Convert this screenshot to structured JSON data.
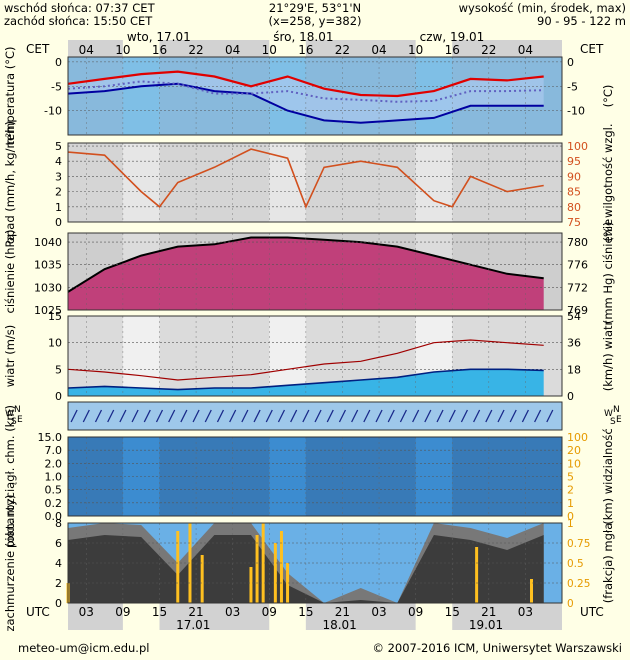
{
  "header": {
    "sunrise": "wschód słońca: 07:37 CET",
    "sunset": "zachód słońca: 15:50 CET",
    "coords": "21°29'E, 53°1'N",
    "grid": "(x=258, y=382)",
    "altitude_label": "wysokość (min, środek, max)",
    "altitude_values": "90 - 95 - 122 m"
  },
  "tz_top": "CET",
  "tz_bottom": "UTC",
  "days_top": [
    "wto, 17.01",
    "śro, 18.01",
    "czw, 19.01"
  ],
  "days_bottom": [
    "17.01",
    "18.01",
    "19.01"
  ],
  "hours_top": [
    "04",
    "10",
    "16",
    "22",
    "04",
    "10",
    "16",
    "22",
    "04",
    "10",
    "16",
    "22",
    "04"
  ],
  "hours_bottom": [
    "03",
    "09",
    "15",
    "21",
    "03",
    "09",
    "15",
    "21",
    "03",
    "09",
    "15",
    "21",
    "03"
  ],
  "footer": {
    "email": "meteo-um@icm.edu.pl",
    "copyright": "© 2007-2016 ICM, Uniwersytet Warszawski"
  },
  "colors": {
    "page_bg": "#ffffe6",
    "sky_blue": "#7fbfe6",
    "night_gray": "#d2d2d2",
    "temp_max": "#e00000",
    "temp_mid": "#0000a0",
    "humidity": "#d2501e",
    "pressure_line": "#000000",
    "wind_speed": "#a00000",
    "cloud_dark": "#3c3c3c",
    "visibility": "#e69a00",
    "fog": "#ffc020"
  },
  "chart_data": [
    {
      "type": "line",
      "panel": "temperature",
      "ylabel": "temperatura (°C)",
      "ylabel_right": "(°C)",
      "yticks": [
        0,
        -5,
        -10
      ],
      "ylim": [
        -15,
        1
      ],
      "x_hours": [
        0,
        6,
        12,
        18,
        24,
        30,
        36,
        42,
        48,
        54,
        60,
        66,
        72,
        78
      ],
      "series": [
        {
          "key": "max",
          "values": [
            -4.5,
            -3.5,
            -2.5,
            -2.0,
            -3.0,
            -5.0,
            -3.0,
            -5.5,
            -6.8,
            -7.0,
            -6.0,
            -3.5,
            -3.8,
            -3.0
          ]
        },
        {
          "key": "mid",
          "values": [
            -5.5,
            -5.0,
            -4.0,
            -4.5,
            -6.5,
            -6.5,
            -6.0,
            -7.5,
            -7.8,
            -8.2,
            -8.0,
            -6.0,
            -6.0,
            -5.8
          ]
        },
        {
          "key": "min",
          "values": [
            -6.5,
            -6.0,
            -5.0,
            -4.5,
            -6.0,
            -6.5,
            -10.0,
            -12.0,
            -12.5,
            -12.0,
            -11.5,
            -9.0,
            -9.0,
            -9.0
          ]
        }
      ]
    },
    {
      "type": "bar+line",
      "panel": "precipitation",
      "ylabel": "opad (mm/h, kg/m²h)",
      "ylabel_right": "(%) wilgotność wzgl.",
      "yticks": [
        0,
        1,
        2,
        3,
        4,
        5
      ],
      "ylim": [
        0,
        5.2
      ],
      "yticks_right": [
        75,
        80,
        85,
        90,
        95,
        100
      ],
      "ylim_right": [
        75,
        101
      ],
      "humidity_x": [
        0,
        6,
        12,
        15,
        18,
        24,
        30,
        36,
        39,
        42,
        48,
        54,
        60,
        63,
        66,
        72,
        78
      ],
      "humidity_values": [
        98,
        97,
        85,
        80,
        88,
        93,
        99,
        96,
        80,
        93,
        95,
        93,
        82,
        80,
        90,
        85,
        87
      ]
    },
    {
      "type": "area",
      "panel": "pressure",
      "ylabel": "ciśnienie (hPa)",
      "ylabel_right": "(mm Hg) ciśnienie",
      "yticks": [
        1025,
        1030,
        1035,
        1040
      ],
      "ylim": [
        1025,
        1042
      ],
      "yticks_right": [
        "780",
        "776",
        "772",
        "769"
      ],
      "x_hours": [
        0,
        6,
        12,
        18,
        24,
        30,
        36,
        42,
        48,
        54,
        60,
        66,
        72,
        78
      ],
      "values": [
        1029,
        1034,
        1037,
        1039,
        1039.5,
        1041,
        1041,
        1040.5,
        1040,
        1039,
        1037,
        1035,
        1033,
        1032
      ]
    },
    {
      "type": "line",
      "panel": "wind",
      "ylabel": "wiatr (m/s)",
      "ylabel_right": "(km/h) wiatr",
      "yticks": [
        0,
        5,
        10,
        15
      ],
      "ylim": [
        0,
        15
      ],
      "yticks_right": [
        "0",
        "18",
        "36",
        "54"
      ],
      "x_hours": [
        0,
        6,
        12,
        18,
        24,
        30,
        36,
        42,
        48,
        54,
        60,
        66,
        72,
        78
      ],
      "series": [
        {
          "key": "gust",
          "values": [
            5.0,
            4.5,
            3.8,
            3.0,
            3.5,
            4.0,
            5.0,
            6.0,
            6.5,
            8.0,
            10.0,
            10.5,
            10.0,
            9.5
          ]
        },
        {
          "key": "speed",
          "values": [
            1.5,
            1.8,
            1.5,
            1.2,
            1.5,
            1.5,
            2.0,
            2.5,
            3.0,
            3.5,
            4.5,
            5.0,
            5.0,
            4.8
          ]
        }
      ]
    },
    {
      "type": "barbs",
      "panel": "wind_direction",
      "label_left": "W S N E",
      "label_right": "W S N E"
    },
    {
      "type": "scatter+line",
      "panel": "visibility",
      "ylabel": "pion. rozciągł. chm. (km)",
      "ylabel_right": "(km) widzialność",
      "yticks": [
        "0.0",
        "0.2",
        "0.5",
        "1.0",
        "2.0",
        "7.0",
        "15.0"
      ],
      "yticks_right": [
        "0",
        "1",
        "2",
        "5",
        "10",
        "20",
        "100"
      ]
    },
    {
      "type": "area",
      "panel": "cloudiness",
      "ylabel": "zachmurzenie (oktanty)",
      "ylabel_right": "(frakcja) mgła",
      "yticks": [
        0,
        2,
        4,
        6,
        8
      ],
      "ylim": [
        0,
        8
      ],
      "yticks_right": [
        "0",
        "0.25",
        "0.5",
        "0.75",
        "1"
      ],
      "x_hours": [
        0,
        6,
        12,
        18,
        24,
        30,
        36,
        42,
        48,
        54,
        60,
        66,
        72,
        78
      ],
      "values": [
        7.5,
        8,
        7.8,
        4,
        8,
        8,
        3,
        0,
        1.5,
        0,
        8,
        7.5,
        6.5,
        8
      ],
      "fog_x": [
        0,
        18,
        20,
        22,
        30,
        31,
        32,
        34,
        35,
        36,
        67,
        76
      ],
      "fog_values": [
        0.25,
        0.9,
        1.0,
        0.6,
        0.45,
        0.85,
        1.0,
        0.75,
        0.9,
        0.5,
        0.7,
        0.3
      ]
    }
  ]
}
